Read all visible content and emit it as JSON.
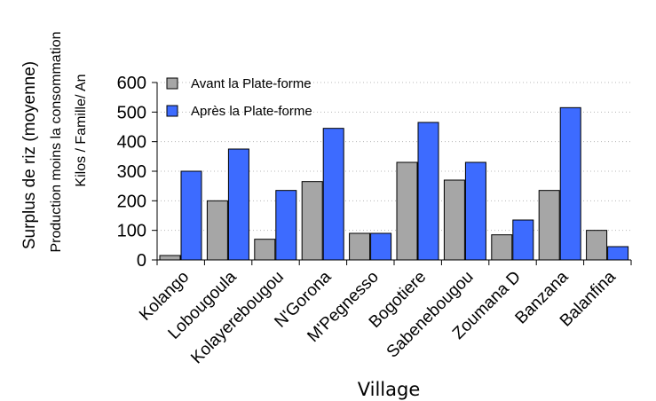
{
  "chart_data": {
    "type": "bar",
    "categories": [
      "Kolango",
      "Lobougoula",
      "Kolayerebougou",
      "N'Gorona",
      "M'Pegnesso",
      "Bogotiere",
      "Sabenebougou",
      "Zoumana D",
      "Banzana",
      "Balanfina"
    ],
    "series": [
      {
        "name": "Avant la Plate-forme",
        "color": "#a6a6a6",
        "values": [
          15,
          200,
          70,
          265,
          90,
          330,
          270,
          85,
          235,
          100
        ]
      },
      {
        "name": "Après la Plate-forme",
        "color": "#3d6bff",
        "values": [
          300,
          375,
          235,
          445,
          90,
          465,
          330,
          135,
          515,
          45
        ]
      }
    ],
    "ylabel_lines": [
      "Surplus de riz (moyenne)",
      "Production moins la consommation",
      "Kilos / Famille/ An"
    ],
    "xlabel": "Village",
    "ylim": [
      0,
      600
    ],
    "yticks": [
      "0",
      "100",
      "200",
      "300",
      "400",
      "500",
      "600"
    ],
    "grid": "dotted horizontal",
    "legend_position": "top-left"
  }
}
